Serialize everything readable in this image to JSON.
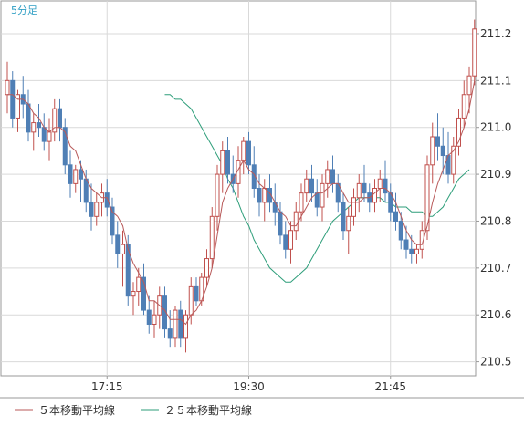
{
  "chart_data": {
    "type": "candlestick",
    "period_label": "5分足",
    "x_ticks": [
      "17:15",
      "19:30",
      "21:45"
    ],
    "y_ticks": [
      "211.2",
      "211.1",
      "211.0",
      "210.9",
      "210.8",
      "210.7",
      "210.6",
      "210.5"
    ],
    "ylim": [
      210.47,
      211.27
    ],
    "grid": true,
    "legend_position": "bottom-left",
    "legend": [
      {
        "label": "５本移動平均線",
        "color": "#b85a5a"
      },
      {
        "label": "２５本移動平均線",
        "color": "#2e9e7a"
      }
    ],
    "colors": {
      "up": "#ffffff",
      "up_border": "#c0504d",
      "down": "#4f7fb5",
      "down_border": "#4f7fb5"
    },
    "candles": [
      [
        211.07,
        211.14,
        211.03,
        211.1
      ],
      [
        211.1,
        211.12,
        211.0,
        211.02
      ],
      [
        211.02,
        211.08,
        210.99,
        211.07
      ],
      [
        211.07,
        211.11,
        211.02,
        211.05
      ],
      [
        211.05,
        211.08,
        210.97,
        210.99
      ],
      [
        210.99,
        211.03,
        210.95,
        211.01
      ],
      [
        211.01,
        211.05,
        210.98,
        211.0
      ],
      [
        211.0,
        211.03,
        210.95,
        210.97
      ],
      [
        210.97,
        211.02,
        210.93,
        210.99
      ],
      [
        210.99,
        211.06,
        210.97,
        211.04
      ],
      [
        211.04,
        211.06,
        210.97,
        211.0
      ],
      [
        211.0,
        211.02,
        210.9,
        210.92
      ],
      [
        210.92,
        210.95,
        210.85,
        210.88
      ],
      [
        210.88,
        210.92,
        210.86,
        210.91
      ],
      [
        210.91,
        210.93,
        210.84,
        210.89
      ],
      [
        210.89,
        210.91,
        210.82,
        210.84
      ],
      [
        210.84,
        210.88,
        210.78,
        210.81
      ],
      [
        210.81,
        210.86,
        210.79,
        210.84
      ],
      [
        210.84,
        210.88,
        210.81,
        210.86
      ],
      [
        210.86,
        210.89,
        210.81,
        210.83
      ],
      [
        210.83,
        210.85,
        210.75,
        210.77
      ],
      [
        210.77,
        210.8,
        210.7,
        210.73
      ],
      [
        210.73,
        210.78,
        210.66,
        210.75
      ],
      [
        210.75,
        210.77,
        210.62,
        210.64
      ],
      [
        210.64,
        210.67,
        210.6,
        210.65
      ],
      [
        210.65,
        210.7,
        210.62,
        210.68
      ],
      [
        210.68,
        210.71,
        210.6,
        210.61
      ],
      [
        210.61,
        210.64,
        210.56,
        210.58
      ],
      [
        210.58,
        210.63,
        210.55,
        210.6
      ],
      [
        210.6,
        210.66,
        210.57,
        210.64
      ],
      [
        210.64,
        210.66,
        210.55,
        210.57
      ],
      [
        210.57,
        210.61,
        210.53,
        210.55
      ],
      [
        210.55,
        210.62,
        210.53,
        210.61
      ],
      [
        210.61,
        210.63,
        210.53,
        210.55
      ],
      [
        210.55,
        210.61,
        210.52,
        210.6
      ],
      [
        210.6,
        210.68,
        210.58,
        210.66
      ],
      [
        210.66,
        210.68,
        210.62,
        210.63
      ],
      [
        210.63,
        210.69,
        210.62,
        210.68
      ],
      [
        210.68,
        210.74,
        210.66,
        210.72
      ],
      [
        210.72,
        210.83,
        210.7,
        210.81
      ],
      [
        210.81,
        210.92,
        210.78,
        210.9
      ],
      [
        210.9,
        210.97,
        210.86,
        210.95
      ],
      [
        210.95,
        210.98,
        210.88,
        210.9
      ],
      [
        210.9,
        210.94,
        210.86,
        210.88
      ],
      [
        210.88,
        210.96,
        210.85,
        210.93
      ],
      [
        210.93,
        210.98,
        210.9,
        210.97
      ],
      [
        210.97,
        210.99,
        210.9,
        210.92
      ],
      [
        210.92,
        210.96,
        210.85,
        210.87
      ],
      [
        210.87,
        210.9,
        210.81,
        210.84
      ],
      [
        210.84,
        210.89,
        210.8,
        210.87
      ],
      [
        210.87,
        210.9,
        210.82,
        210.84
      ],
      [
        210.84,
        210.88,
        210.79,
        210.82
      ],
      [
        210.82,
        210.84,
        210.75,
        210.77
      ],
      [
        210.77,
        210.8,
        210.72,
        210.74
      ],
      [
        210.74,
        210.8,
        210.71,
        210.78
      ],
      [
        210.78,
        210.84,
        210.76,
        210.82
      ],
      [
        210.82,
        210.88,
        210.8,
        210.86
      ],
      [
        210.86,
        210.91,
        210.84,
        210.89
      ],
      [
        210.89,
        210.92,
        210.84,
        210.86
      ],
      [
        210.86,
        210.89,
        210.81,
        210.83
      ],
      [
        210.83,
        210.9,
        210.8,
        210.88
      ],
      [
        210.88,
        210.93,
        210.85,
        210.91
      ],
      [
        210.91,
        210.94,
        210.86,
        210.88
      ],
      [
        210.88,
        210.9,
        210.82,
        210.84
      ],
      [
        210.84,
        210.86,
        210.76,
        210.78
      ],
      [
        210.78,
        210.83,
        210.73,
        210.81
      ],
      [
        210.81,
        210.87,
        210.79,
        210.85
      ],
      [
        210.85,
        210.9,
        210.82,
        210.88
      ],
      [
        210.88,
        210.92,
        210.84,
        210.86
      ],
      [
        210.86,
        210.88,
        210.82,
        210.84
      ],
      [
        210.84,
        210.89,
        210.82,
        210.87
      ],
      [
        210.87,
        210.91,
        210.84,
        210.89
      ],
      [
        210.89,
        210.93,
        210.84,
        210.86
      ],
      [
        210.86,
        210.88,
        210.8,
        210.82
      ],
      [
        210.82,
        210.86,
        210.78,
        210.8
      ],
      [
        210.8,
        210.82,
        210.74,
        210.76
      ],
      [
        210.76,
        210.79,
        210.72,
        210.74
      ],
      [
        210.74,
        210.77,
        210.71,
        210.73
      ],
      [
        210.73,
        210.75,
        210.71,
        210.74
      ],
      [
        210.74,
        210.8,
        210.72,
        210.78
      ],
      [
        210.78,
        210.94,
        210.76,
        210.92
      ],
      [
        210.92,
        211.01,
        210.88,
        210.98
      ],
      [
        210.98,
        211.03,
        210.93,
        210.96
      ],
      [
        210.96,
        211.0,
        210.9,
        210.94
      ],
      [
        210.94,
        210.99,
        210.88,
        210.9
      ],
      [
        210.9,
        210.98,
        210.88,
        210.96
      ],
      [
        210.96,
        211.04,
        210.94,
        211.02
      ],
      [
        211.02,
        211.1,
        211.0,
        211.07
      ],
      [
        211.07,
        211.13,
        211.03,
        211.11
      ],
      [
        211.11,
        211.23,
        211.09,
        211.21
      ]
    ],
    "ma5": [
      211.07,
      211.07,
      211.06,
      211.06,
      211.05,
      211.03,
      211.02,
      211.0,
      210.99,
      211.0,
      211.0,
      210.99,
      210.96,
      210.95,
      210.92,
      210.89,
      210.87,
      210.86,
      210.85,
      210.85,
      210.82,
      210.81,
      210.79,
      210.74,
      210.71,
      210.69,
      210.67,
      210.63,
      210.63,
      210.62,
      210.61,
      210.59,
      210.59,
      210.59,
      210.58,
      210.6,
      210.61,
      210.63,
      210.66,
      210.7,
      210.77,
      210.84,
      210.87,
      210.89,
      210.91,
      210.93,
      210.91,
      210.9,
      210.88,
      210.87,
      210.86,
      210.84,
      210.82,
      210.81,
      210.79,
      210.79,
      210.81,
      210.83,
      210.85,
      210.86,
      210.86,
      210.87,
      210.88,
      210.88,
      210.86,
      210.84,
      210.84,
      210.84,
      210.85,
      210.85,
      210.86,
      210.87,
      210.87,
      210.86,
      210.84,
      210.81,
      210.78,
      210.76,
      210.75,
      210.75,
      210.79,
      210.84,
      210.88,
      210.91,
      210.94,
      210.95,
      210.97,
      211.0,
      211.04,
      211.1
    ],
    "ma25": [
      211.07,
      211.07,
      211.06,
      211.06,
      211.05,
      211.04,
      211.02,
      211.0,
      210.98,
      210.96,
      210.94,
      210.92,
      210.89,
      210.87,
      210.84,
      210.81,
      210.79,
      210.76,
      210.74,
      210.72,
      210.7,
      210.69,
      210.68,
      210.67,
      210.67,
      210.68,
      210.69,
      210.7,
      210.72,
      210.74,
      210.76,
      210.78,
      210.8,
      210.81,
      210.82,
      210.83,
      210.84,
      210.85,
      210.85,
      210.85,
      210.85,
      210.85,
      210.84,
      210.84,
      210.83,
      210.83,
      210.83,
      210.82,
      210.82,
      210.82,
      210.81,
      210.81,
      210.82,
      210.83,
      210.85,
      210.87,
      210.89,
      210.9,
      210.91
    ],
    "ma25_start": 30
  }
}
